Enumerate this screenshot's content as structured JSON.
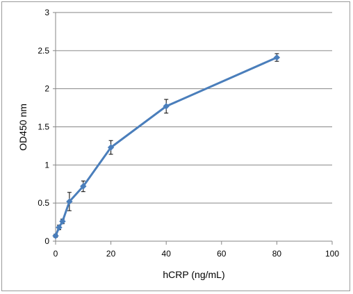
{
  "chart_data": {
    "type": "line",
    "title": "",
    "xlabel": "hCRP (ng/mL)",
    "ylabel": "OD450 nm",
    "xlim": [
      0,
      100
    ],
    "ylim": [
      0,
      3
    ],
    "xticks": [
      0,
      20,
      40,
      60,
      80,
      100
    ],
    "yticks": [
      0,
      0.5,
      1,
      1.5,
      2,
      2.5,
      3
    ],
    "grid": "horizontal",
    "legend": "none",
    "series": [
      {
        "color": "#4a7ebb",
        "marker": "diamond",
        "x": [
          0,
          1.25,
          2.5,
          5,
          10,
          20,
          40,
          80
        ],
        "y": [
          0.07,
          0.18,
          0.26,
          0.52,
          0.72,
          1.23,
          1.77,
          2.41
        ],
        "error": [
          0.02,
          0.03,
          0.03,
          0.12,
          0.07,
          0.09,
          0.09,
          0.05
        ]
      }
    ]
  }
}
